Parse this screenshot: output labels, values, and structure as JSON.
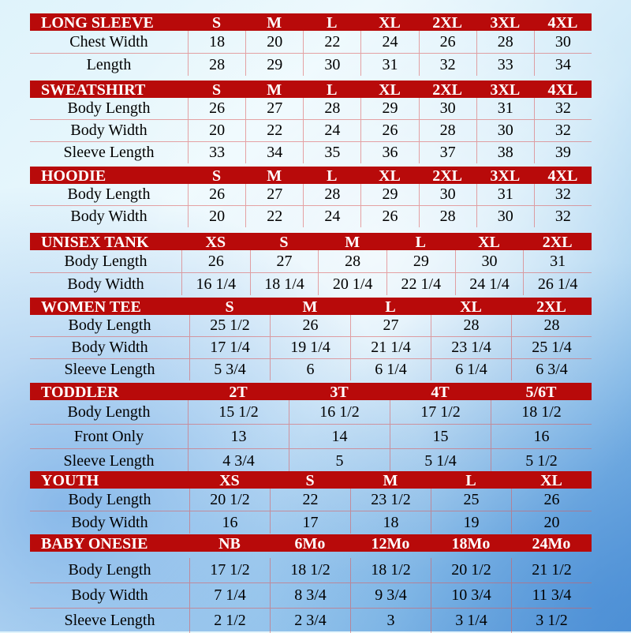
{
  "sections": [
    {
      "title": "LONG SLEEVE",
      "sizes": [
        "S",
        "M",
        "L",
        "XL",
        "2XL",
        "3XL",
        "4XL"
      ],
      "rows": [
        {
          "label": "Chest Width",
          "values": [
            "18",
            "20",
            "22",
            "24",
            "26",
            "28",
            "30"
          ]
        },
        {
          "label": "Length",
          "values": [
            "28",
            "29",
            "30",
            "31",
            "32",
            "33",
            "34"
          ]
        }
      ]
    },
    {
      "title": "SWEATSHIRT",
      "sizes": [
        "S",
        "M",
        "L",
        "XL",
        "2XL",
        "3XL",
        "4XL"
      ],
      "rows": [
        {
          "label": "Body Length",
          "values": [
            "26",
            "27",
            "28",
            "29",
            "30",
            "31",
            "32"
          ]
        },
        {
          "label": "Body Width",
          "values": [
            "20",
            "22",
            "24",
            "26",
            "28",
            "30",
            "32"
          ]
        },
        {
          "label": "Sleeve Length",
          "values": [
            "33",
            "34",
            "35",
            "36",
            "37",
            "38",
            "39"
          ]
        }
      ]
    },
    {
      "title": "HOODIE",
      "sizes": [
        "S",
        "M",
        "L",
        "XL",
        "2XL",
        "3XL",
        "4XL"
      ],
      "rows": [
        {
          "label": "Body Length",
          "values": [
            "26",
            "27",
            "28",
            "29",
            "30",
            "31",
            "32"
          ]
        },
        {
          "label": "Body Width",
          "values": [
            "20",
            "22",
            "24",
            "26",
            "28",
            "30",
            "32"
          ]
        }
      ]
    },
    {
      "title": "UNISEX TANK",
      "sizes": [
        "XS",
        "S",
        "M",
        "L",
        "XL",
        "2XL"
      ],
      "rows": [
        {
          "label": "Body Length",
          "values": [
            "26",
            "27",
            "28",
            "29",
            "30",
            "31"
          ]
        },
        {
          "label": "Body Width",
          "values": [
            "16 1/4",
            "18 1/4",
            "20 1/4",
            "22 1/4",
            "24 1/4",
            "26 1/4"
          ]
        }
      ]
    },
    {
      "title": "WOMEN TEE",
      "sizes": [
        "S",
        "M",
        "L",
        "XL",
        "2XL"
      ],
      "rows": [
        {
          "label": "Body Length",
          "values": [
            "25 1/2",
            "26",
            "27",
            "28",
            "28"
          ]
        },
        {
          "label": "Body Width",
          "values": [
            "17 1/4",
            "19 1/4",
            "21 1/4",
            "23 1/4",
            "25 1/4"
          ]
        },
        {
          "label": "Sleeve Length",
          "values": [
            "5 3/4",
            "6",
            "6 1/4",
            "6 1/4",
            "6 3/4"
          ]
        }
      ]
    },
    {
      "title": "TODDLER",
      "sizes": [
        "2T",
        "3T",
        "4T",
        "5/6T"
      ],
      "rows": [
        {
          "label": "Body Length",
          "values": [
            "15 1/2",
            "16 1/2",
            "17 1/2",
            "18 1/2"
          ]
        },
        {
          "label": "Front Only",
          "values": [
            "13",
            "14",
            "15",
            "16"
          ]
        },
        {
          "label": "Sleeve Length",
          "values": [
            "4 3/4",
            "5",
            "5 1/4",
            "5 1/2"
          ]
        }
      ]
    },
    {
      "title": "YOUTH",
      "sizes": [
        "XS",
        "S",
        "M",
        "L",
        "XL"
      ],
      "rows": [
        {
          "label": "Body Length",
          "values": [
            "20 1/2",
            "22",
            "23 1/2",
            "25",
            "26"
          ]
        },
        {
          "label": "Body Width",
          "values": [
            "16",
            "17",
            "18",
            "19",
            "20"
          ]
        }
      ]
    },
    {
      "title": "BABY ONESIE",
      "sizes": [
        "NB",
        "6Mo",
        "12Mo",
        "18Mo",
        "24Mo"
      ],
      "rows": [
        {
          "label": "Body Length",
          "values": [
            "17 1/2",
            "18 1/2",
            "18 1/2",
            "20 1/2",
            "21 1/2"
          ]
        },
        {
          "label": "Body Width",
          "values": [
            "7 1/4",
            "8 3/4",
            "9 3/4",
            "10 3/4",
            "11 3/4"
          ]
        },
        {
          "label": "Sleeve Length",
          "values": [
            "2 1/2",
            "2 3/4",
            "3",
            "3 1/4",
            "3 1/2"
          ]
        }
      ]
    }
  ],
  "colors": {
    "header": "#b80a0a",
    "header_text": "#ffffff"
  }
}
